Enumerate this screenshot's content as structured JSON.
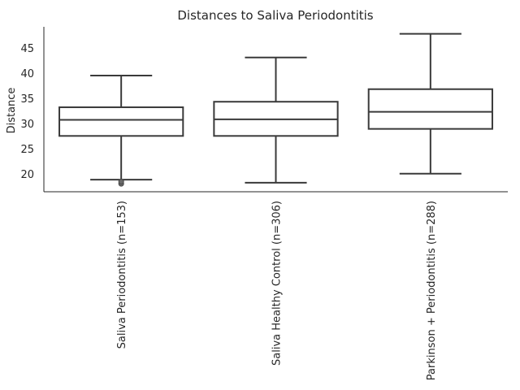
{
  "chart_data": {
    "type": "box",
    "title": "Distances to Saliva Periodontitis",
    "xlabel": "",
    "ylabel": "Distance",
    "ylim": [
      16.5,
      49.3
    ],
    "yticks": [
      20,
      25,
      30,
      35,
      40,
      45
    ],
    "grid": false,
    "categories": [
      "Saliva Periodontitis (n=153)",
      "Saliva Healthy Control (n=306)",
      "Parkinson + Periodontitis (n=288)"
    ],
    "boxes": [
      {
        "whisker_low": 18.9,
        "q1": 27.6,
        "median": 30.8,
        "q3": 33.3,
        "whisker_high": 39.6,
        "fliers": [
          18.1,
          18.5
        ]
      },
      {
        "whisker_low": 18.3,
        "q1": 27.6,
        "median": 30.9,
        "q3": 34.4,
        "whisker_high": 43.2,
        "fliers": []
      },
      {
        "whisker_low": 20.1,
        "q1": 29.0,
        "median": 32.4,
        "q3": 36.9,
        "whisker_high": 47.9,
        "fliers": []
      }
    ]
  }
}
